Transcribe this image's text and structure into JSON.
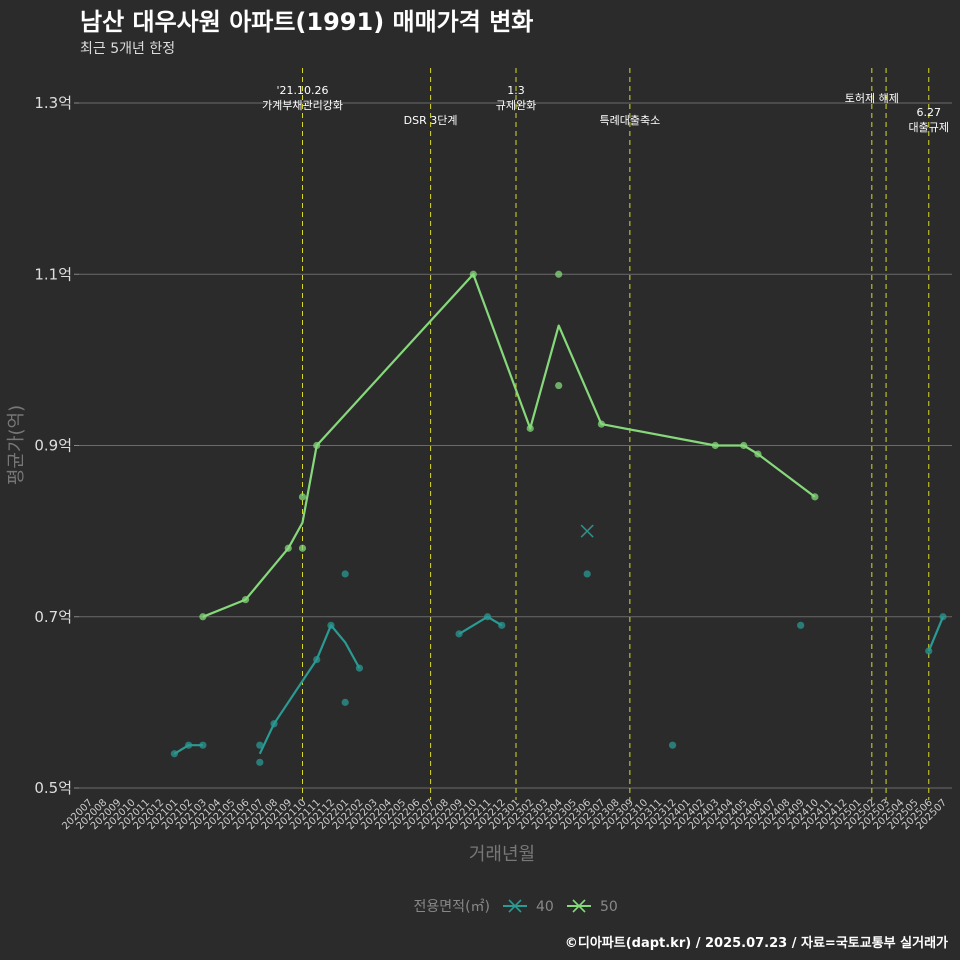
{
  "chart_data": {
    "type": "line",
    "title": "남산 대우사원 아파트(1991) 매매가격 변화",
    "subtitle": "최근 5개년 한정",
    "xlabel": "거래년월",
    "ylabel": "평균가(억)",
    "ylim": [
      0.5,
      1.3
    ],
    "yticks": [
      "0.5억",
      "0.7억",
      "0.9억",
      "1.1억",
      "1.3억"
    ],
    "categories": [
      "202007",
      "202008",
      "202009",
      "202010",
      "202011",
      "202012",
      "202101",
      "202102",
      "202103",
      "202104",
      "202105",
      "202106",
      "202107",
      "202108",
      "202109",
      "202110",
      "202111",
      "202112",
      "202201",
      "202202",
      "202203",
      "202204",
      "202205",
      "202206",
      "202207",
      "202208",
      "202209",
      "202210",
      "202211",
      "202212",
      "202301",
      "202302",
      "202303",
      "202304",
      "202305",
      "202306",
      "202307",
      "202308",
      "202309",
      "202310",
      "202311",
      "202312",
      "202401",
      "202402",
      "202403",
      "202404",
      "202405",
      "202406",
      "202407",
      "202408",
      "202409",
      "202410",
      "202411",
      "202412",
      "202501",
      "202502",
      "202503",
      "202504",
      "202505",
      "202506",
      "202507"
    ],
    "legend_title": "전용면적(㎡)",
    "series": [
      {
        "name": "40",
        "color": "#2a9a93",
        "line": [
          [
            "202101",
            0.54
          ],
          [
            "202102",
            0.55
          ],
          [
            "202103",
            0.55
          ],
          null,
          [
            "202107",
            0.54
          ],
          [
            "202108",
            0.575
          ],
          [
            "202111",
            0.65
          ],
          [
            "202112",
            0.69
          ],
          [
            "202201",
            0.67
          ],
          [
            "202202",
            0.64
          ],
          null,
          [
            "202209",
            0.68
          ],
          [
            "202211",
            0.7
          ],
          [
            "202212",
            0.69
          ],
          null,
          [
            "202506",
            0.66
          ],
          [
            "202507",
            0.7
          ]
        ],
        "points": [
          [
            "202101",
            0.54
          ],
          [
            "202102",
            0.55
          ],
          [
            "202103",
            0.55
          ],
          [
            "202107",
            0.55
          ],
          [
            "202107",
            0.53
          ],
          [
            "202108",
            0.575
          ],
          [
            "202111",
            0.65
          ],
          [
            "202112",
            0.69
          ],
          [
            "202201",
            0.75
          ],
          [
            "202201",
            0.6
          ],
          [
            "202202",
            0.64
          ],
          [
            "202209",
            0.68
          ],
          [
            "202211",
            0.7
          ],
          [
            "202212",
            0.69
          ],
          [
            "202306",
            0.75
          ],
          [
            "202312",
            0.55
          ],
          [
            "202409",
            0.69
          ],
          [
            "202506",
            0.66
          ],
          [
            "202507",
            0.7
          ]
        ]
      },
      {
        "name": "50",
        "color": "#86d97b",
        "line": [
          [
            "202103",
            0.7
          ],
          [
            "202106",
            0.72
          ],
          [
            "202109",
            0.78
          ],
          [
            "202110",
            0.81
          ],
          [
            "202111",
            0.9
          ],
          [
            "202210",
            1.1
          ],
          [
            "202302",
            0.92
          ],
          [
            "202304",
            1.04
          ],
          [
            "202307",
            0.925
          ],
          [
            "202403",
            0.9
          ],
          [
            "202405",
            0.9
          ],
          [
            "202406",
            0.89
          ],
          [
            "202410",
            0.84
          ]
        ],
        "points": [
          [
            "202103",
            0.7
          ],
          [
            "202106",
            0.72
          ],
          [
            "202109",
            0.78
          ],
          [
            "202110",
            0.84
          ],
          [
            "202110",
            0.78
          ],
          [
            "202111",
            0.9
          ],
          [
            "202210",
            1.1
          ],
          [
            "202302",
            0.92
          ],
          [
            "202304",
            1.1
          ],
          [
            "202304",
            0.97
          ],
          [
            "202307",
            0.925
          ],
          [
            "202403",
            0.9
          ],
          [
            "202405",
            0.9
          ],
          [
            "202406",
            0.89
          ],
          [
            "202410",
            0.84
          ]
        ]
      }
    ],
    "highlight": {
      "category": "202306",
      "value": 0.8
    },
    "events": [
      {
        "category": "202110",
        "lines": [
          "'21.10.26",
          "가계부채관리강화"
        ],
        "level": 1
      },
      {
        "category": "202207",
        "lines": [
          "DSR 3단계"
        ],
        "level": 2
      },
      {
        "category": "202301",
        "lines": [
          "1.3",
          "규제완화"
        ],
        "level": 1
      },
      {
        "category": "202309",
        "lines": [
          "특례대출축소"
        ],
        "level": 2
      },
      {
        "category": "202502",
        "lines": [
          "토허제 해제"
        ],
        "level": 0
      },
      {
        "category": "202503",
        "lines": [],
        "level": 0
      },
      {
        "category": "202506",
        "lines": [
          "6.27",
          "대출규제"
        ],
        "level": 3
      }
    ]
  },
  "caption": "©디아파트(dapt.kr) / 2025.07.23 / 자료=국토교통부 실거래가"
}
